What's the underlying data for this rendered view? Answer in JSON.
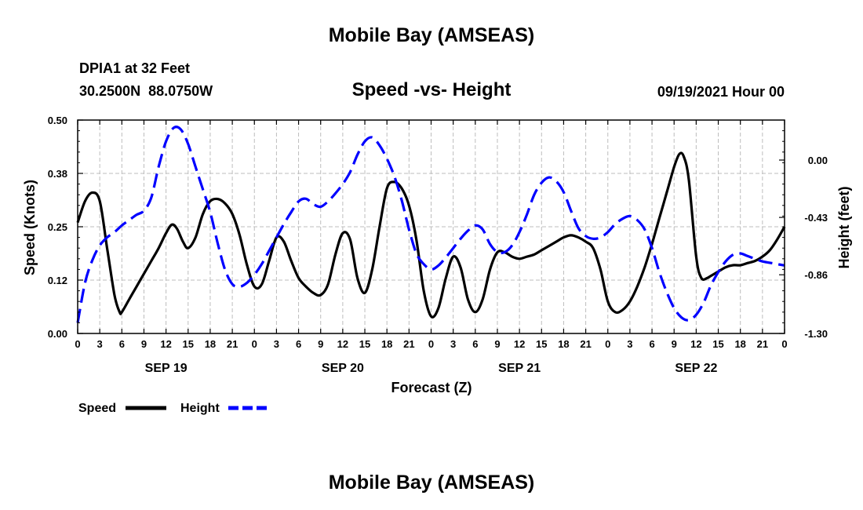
{
  "page": {
    "title_top": "Mobile Bay (AMSEAS)",
    "title_bottom": "Mobile Bay (AMSEAS)",
    "station": "DPIA1 at 32 Feet",
    "coords": "30.2500N  88.0750W",
    "datetime": "09/19/2021 Hour 00"
  },
  "chart_data": {
    "type": "line",
    "title": "Speed -vs- Height",
    "xlabel": "Forecast (Z)",
    "ylabel_left": "Speed (Knots)",
    "ylabel_right": "Height (feet)",
    "x_range": [
      0,
      96
    ],
    "ylim_left": [
      0,
      0.5
    ],
    "ylim_right": [
      -1.3,
      0.3
    ],
    "grid": true,
    "legend": "bottom-left",
    "x_ticks": [
      {
        "x": 0,
        "label": "0"
      },
      {
        "x": 3,
        "label": "3"
      },
      {
        "x": 6,
        "label": "6"
      },
      {
        "x": 9,
        "label": "9"
      },
      {
        "x": 12,
        "label": "12"
      },
      {
        "x": 15,
        "label": "15"
      },
      {
        "x": 18,
        "label": "18"
      },
      {
        "x": 21,
        "label": "21"
      },
      {
        "x": 24,
        "label": "0"
      },
      {
        "x": 27,
        "label": "3"
      },
      {
        "x": 30,
        "label": "6"
      },
      {
        "x": 33,
        "label": "9"
      },
      {
        "x": 36,
        "label": "12"
      },
      {
        "x": 39,
        "label": "15"
      },
      {
        "x": 42,
        "label": "18"
      },
      {
        "x": 45,
        "label": "21"
      },
      {
        "x": 48,
        "label": "0"
      },
      {
        "x": 51,
        "label": "3"
      },
      {
        "x": 54,
        "label": "6"
      },
      {
        "x": 57,
        "label": "9"
      },
      {
        "x": 60,
        "label": "12"
      },
      {
        "x": 63,
        "label": "15"
      },
      {
        "x": 66,
        "label": "18"
      },
      {
        "x": 69,
        "label": "21"
      },
      {
        "x": 72,
        "label": "0"
      },
      {
        "x": 75,
        "label": "3"
      },
      {
        "x": 78,
        "label": "6"
      },
      {
        "x": 81,
        "label": "9"
      },
      {
        "x": 84,
        "label": "12"
      },
      {
        "x": 87,
        "label": "15"
      },
      {
        "x": 90,
        "label": "18"
      },
      {
        "x": 93,
        "label": "21"
      },
      {
        "x": 96,
        "label": "0"
      }
    ],
    "day_labels": [
      {
        "x": 12,
        "label": "SEP 19"
      },
      {
        "x": 36,
        "label": "SEP 20"
      },
      {
        "x": 60,
        "label": "SEP 21"
      },
      {
        "x": 84,
        "label": "SEP 22"
      }
    ],
    "y_ticks_left": [
      {
        "v": 0.0,
        "label": "0.00"
      },
      {
        "v": 0.125,
        "label": "0.12"
      },
      {
        "v": 0.25,
        "label": "0.25"
      },
      {
        "v": 0.375,
        "label": "0.38"
      },
      {
        "v": 0.5,
        "label": "0.50"
      }
    ],
    "y_ticks_right": [
      {
        "v": 0.0,
        "label": "0.00"
      },
      {
        "v": -0.43,
        "label": "-0.43"
      },
      {
        "v": -0.86,
        "label": "-0.86"
      },
      {
        "v": -1.3,
        "label": "-1.30"
      }
    ],
    "series": [
      {
        "name": "Speed",
        "axis": "left",
        "color": "#000000",
        "dash": "solid",
        "points": [
          [
            0,
            0.26
          ],
          [
            1,
            0.31
          ],
          [
            2,
            0.33
          ],
          [
            3,
            0.31
          ],
          [
            4,
            0.2
          ],
          [
            5,
            0.09
          ],
          [
            5.7,
            0.05
          ],
          [
            6,
            0.05
          ],
          [
            7,
            0.08
          ],
          [
            8,
            0.11
          ],
          [
            9,
            0.14
          ],
          [
            10,
            0.17
          ],
          [
            11,
            0.2
          ],
          [
            12,
            0.235
          ],
          [
            12.8,
            0.255
          ],
          [
            13.5,
            0.245
          ],
          [
            14.3,
            0.215
          ],
          [
            15,
            0.2
          ],
          [
            16,
            0.225
          ],
          [
            17,
            0.28
          ],
          [
            18,
            0.31
          ],
          [
            19,
            0.315
          ],
          [
            20,
            0.305
          ],
          [
            21,
            0.28
          ],
          [
            22,
            0.23
          ],
          [
            23,
            0.16
          ],
          [
            24,
            0.11
          ],
          [
            25,
            0.115
          ],
          [
            26,
            0.17
          ],
          [
            27,
            0.225
          ],
          [
            28,
            0.215
          ],
          [
            29,
            0.17
          ],
          [
            30,
            0.13
          ],
          [
            31,
            0.11
          ],
          [
            32,
            0.095
          ],
          [
            33,
            0.09
          ],
          [
            34,
            0.115
          ],
          [
            35,
            0.185
          ],
          [
            36,
            0.235
          ],
          [
            37,
            0.22
          ],
          [
            38,
            0.13
          ],
          [
            39,
            0.095
          ],
          [
            40,
            0.15
          ],
          [
            41,
            0.25
          ],
          [
            42,
            0.34
          ],
          [
            43,
            0.355
          ],
          [
            44,
            0.34
          ],
          [
            45,
            0.3
          ],
          [
            46,
            0.22
          ],
          [
            47,
            0.1
          ],
          [
            48,
            0.04
          ],
          [
            49,
            0.06
          ],
          [
            50,
            0.13
          ],
          [
            51,
            0.18
          ],
          [
            52,
            0.155
          ],
          [
            53,
            0.08
          ],
          [
            54,
            0.05
          ],
          [
            55,
            0.08
          ],
          [
            56,
            0.15
          ],
          [
            57,
            0.19
          ],
          [
            58,
            0.19
          ],
          [
            59,
            0.18
          ],
          [
            60,
            0.175
          ],
          [
            61,
            0.18
          ],
          [
            62,
            0.185
          ],
          [
            63,
            0.195
          ],
          [
            64,
            0.205
          ],
          [
            65,
            0.215
          ],
          [
            66,
            0.225
          ],
          [
            67,
            0.23
          ],
          [
            68,
            0.225
          ],
          [
            69,
            0.215
          ],
          [
            70,
            0.2
          ],
          [
            71,
            0.15
          ],
          [
            72,
            0.075
          ],
          [
            73,
            0.05
          ],
          [
            74,
            0.055
          ],
          [
            75,
            0.075
          ],
          [
            76,
            0.11
          ],
          [
            77,
            0.155
          ],
          [
            78,
            0.21
          ],
          [
            79,
            0.27
          ],
          [
            80,
            0.33
          ],
          [
            81,
            0.39
          ],
          [
            81.7,
            0.42
          ],
          [
            82.3,
            0.415
          ],
          [
            83,
            0.36
          ],
          [
            84,
            0.18
          ],
          [
            84.7,
            0.13
          ],
          [
            85.5,
            0.13
          ],
          [
            86,
            0.135
          ],
          [
            87,
            0.145
          ],
          [
            88,
            0.155
          ],
          [
            89,
            0.16
          ],
          [
            90,
            0.16
          ],
          [
            91,
            0.165
          ],
          [
            92,
            0.17
          ],
          [
            93,
            0.18
          ],
          [
            94,
            0.195
          ],
          [
            95,
            0.22
          ],
          [
            96,
            0.25
          ]
        ]
      },
      {
        "name": "Height",
        "axis": "right",
        "color": "#0000ff",
        "dash": "dashed",
        "points": [
          [
            0,
            -1.22
          ],
          [
            1,
            -0.92
          ],
          [
            2,
            -0.75
          ],
          [
            3,
            -0.64
          ],
          [
            4,
            -0.58
          ],
          [
            5,
            -0.54
          ],
          [
            6,
            -0.49
          ],
          [
            7,
            -0.45
          ],
          [
            8,
            -0.41
          ],
          [
            9,
            -0.38
          ],
          [
            10,
            -0.28
          ],
          [
            11,
            -0.05
          ],
          [
            12,
            0.14
          ],
          [
            13,
            0.24
          ],
          [
            14,
            0.23
          ],
          [
            15,
            0.12
          ],
          [
            16,
            -0.05
          ],
          [
            17,
            -0.22
          ],
          [
            18,
            -0.39
          ],
          [
            19,
            -0.62
          ],
          [
            20,
            -0.82
          ],
          [
            21,
            -0.93
          ],
          [
            22,
            -0.95
          ],
          [
            23,
            -0.92
          ],
          [
            24,
            -0.86
          ],
          [
            25,
            -0.78
          ],
          [
            26,
            -0.68
          ],
          [
            27,
            -0.58
          ],
          [
            28,
            -0.48
          ],
          [
            29,
            -0.39
          ],
          [
            30,
            -0.31
          ],
          [
            31,
            -0.29
          ],
          [
            32,
            -0.33
          ],
          [
            33,
            -0.35
          ],
          [
            34,
            -0.31
          ],
          [
            35,
            -0.25
          ],
          [
            36,
            -0.18
          ],
          [
            37,
            -0.09
          ],
          [
            38,
            0.04
          ],
          [
            39,
            0.14
          ],
          [
            40,
            0.17
          ],
          [
            41,
            0.11
          ],
          [
            42,
            0.01
          ],
          [
            43,
            -0.12
          ],
          [
            44,
            -0.3
          ],
          [
            45,
            -0.52
          ],
          [
            46,
            -0.7
          ],
          [
            47,
            -0.78
          ],
          [
            48,
            -0.82
          ],
          [
            49,
            -0.79
          ],
          [
            50,
            -0.73
          ],
          [
            51,
            -0.66
          ],
          [
            52,
            -0.59
          ],
          [
            53,
            -0.53
          ],
          [
            54,
            -0.49
          ],
          [
            55,
            -0.52
          ],
          [
            56,
            -0.63
          ],
          [
            57,
            -0.69
          ],
          [
            58,
            -0.69
          ],
          [
            59,
            -0.64
          ],
          [
            60,
            -0.54
          ],
          [
            61,
            -0.41
          ],
          [
            62,
            -0.26
          ],
          [
            63,
            -0.17
          ],
          [
            64,
            -0.13
          ],
          [
            65,
            -0.16
          ],
          [
            66,
            -0.24
          ],
          [
            67,
            -0.38
          ],
          [
            68,
            -0.51
          ],
          [
            69,
            -0.57
          ],
          [
            70,
            -0.59
          ],
          [
            71,
            -0.58
          ],
          [
            72,
            -0.54
          ],
          [
            73,
            -0.48
          ],
          [
            74,
            -0.44
          ],
          [
            75,
            -0.42
          ],
          [
            76,
            -0.45
          ],
          [
            77,
            -0.52
          ],
          [
            78,
            -0.66
          ],
          [
            79,
            -0.84
          ],
          [
            80,
            -0.99
          ],
          [
            81,
            -1.11
          ],
          [
            82,
            -1.18
          ],
          [
            83,
            -1.2
          ],
          [
            84,
            -1.16
          ],
          [
            85,
            -1.07
          ],
          [
            86,
            -0.94
          ],
          [
            87,
            -0.84
          ],
          [
            88,
            -0.76
          ],
          [
            89,
            -0.71
          ],
          [
            90,
            -0.7
          ],
          [
            91,
            -0.72
          ],
          [
            92,
            -0.74
          ],
          [
            93,
            -0.76
          ],
          [
            94,
            -0.77
          ],
          [
            95,
            -0.78
          ],
          [
            96,
            -0.79
          ]
        ]
      }
    ]
  }
}
